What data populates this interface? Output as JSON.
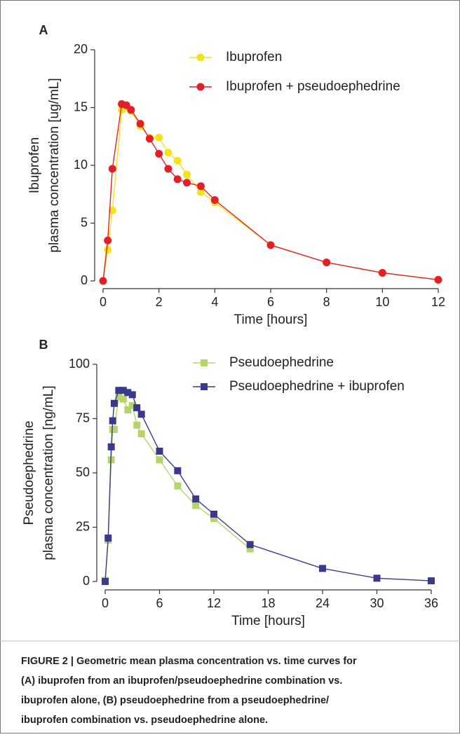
{
  "chart_data": [
    {
      "type": "line",
      "label": "A",
      "marker": "circle",
      "ylabel": [
        "Ibuprofen",
        "plasma concentration [ug/mL]"
      ],
      "xlabel": "Time [hours]",
      "x": [
        0,
        0.167,
        0.333,
        0.667,
        0.833,
        1,
        1.333,
        1.667,
        2,
        2.333,
        2.667,
        3,
        3.5,
        4,
        6,
        8,
        10,
        12
      ],
      "series": [
        {
          "name": "Ibuprofen",
          "color": "#f5e31a",
          "values": [
            0,
            2.7,
            6.1,
            14.8,
            15.1,
            14.7,
            13.4,
            12.4,
            12.4,
            11.1,
            10.4,
            9.2,
            7.7,
            6.8,
            3.1,
            1.6,
            0.7,
            0.1
          ]
        },
        {
          "name": "Ibuprofen + pseudoephedrine",
          "color": "#e3202a",
          "values": [
            0,
            3.5,
            9.7,
            15.3,
            15.2,
            14.8,
            13.6,
            12.3,
            11.0,
            9.7,
            8.8,
            8.5,
            8.2,
            7.0,
            3.1,
            1.6,
            0.7,
            0.1
          ]
        }
      ],
      "xlim": [
        0,
        12
      ],
      "xticks": [
        0,
        2,
        4,
        6,
        8,
        10,
        12
      ],
      "ylim": [
        0,
        20
      ],
      "yticks": [
        0,
        5,
        10,
        15,
        20
      ]
    },
    {
      "type": "line",
      "label": "B",
      "marker": "square",
      "ylabel": [
        "Pseudoephedrine",
        "plasma concentration [ng/mL]"
      ],
      "xlabel": "Time [hours]",
      "x": [
        0,
        0.33,
        0.67,
        0.83,
        1,
        1.5,
        2,
        2.5,
        3,
        3.5,
        4,
        6,
        8,
        10,
        12,
        16,
        24,
        30,
        36
      ],
      "series": [
        {
          "name": "Pseudoephedrine",
          "color": "#b5d56a",
          "values": [
            0.5,
            19,
            56,
            70,
            70,
            85,
            84,
            79,
            81,
            72,
            68,
            56,
            44,
            35,
            29,
            15,
            null,
            null,
            null
          ]
        },
        {
          "name": "Pseudoephedrine + ibuprofen",
          "color": "#3a3a8c",
          "values": [
            0,
            20,
            62,
            74,
            82,
            88,
            88,
            87,
            86,
            80,
            77,
            60,
            51,
            38,
            31,
            17,
            6,
            1.5,
            0.3
          ]
        }
      ],
      "xlim": [
        0,
        36
      ],
      "xticks": [
        0,
        6,
        12,
        18,
        24,
        30,
        36
      ],
      "ylim": [
        0,
        100
      ],
      "yticks": [
        0,
        25,
        50,
        75,
        100
      ]
    }
  ],
  "caption": [
    "FIGURE 2 | Geometric mean plasma concentration vs. time curves for",
    "(A) ibuprofen from an ibuprofen/pseudoephedrine combination vs.",
    "ibuprofen alone, (B) pseudoephedrine from a pseudoephedrine/",
    "ibuprofen combination vs. pseudoephedrine alone."
  ]
}
